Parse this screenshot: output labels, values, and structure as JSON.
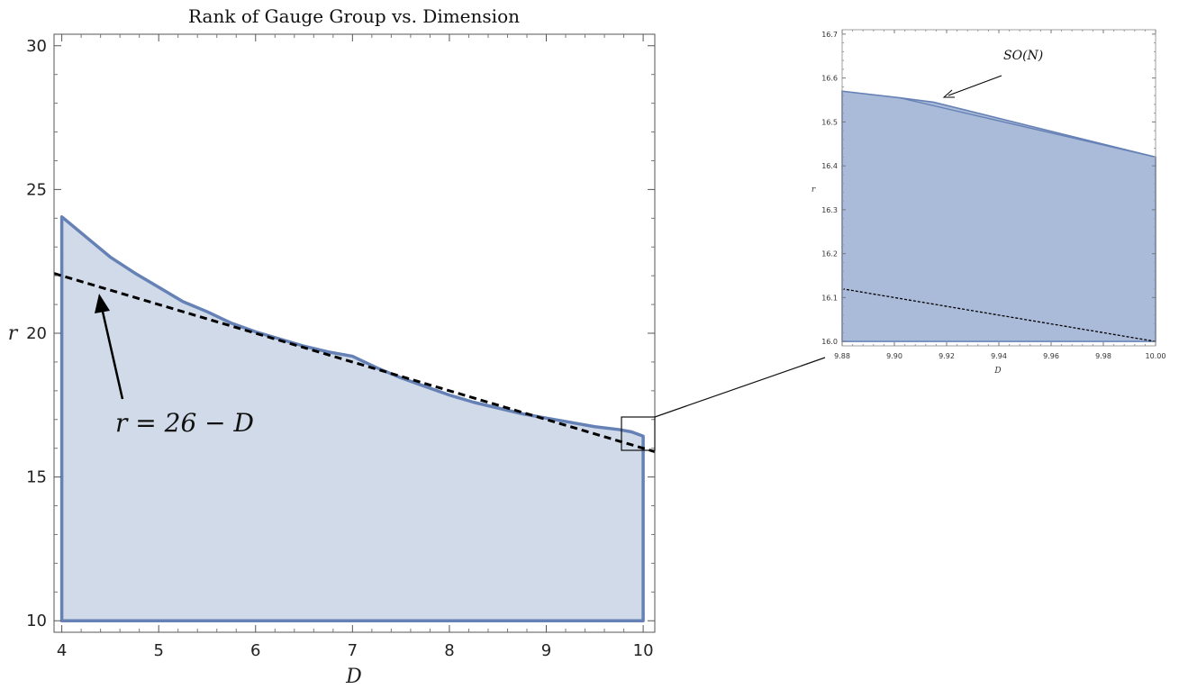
{
  "chart_data": [
    {
      "type": "area",
      "title": "Rank of Gauge Group vs. Dimension",
      "xlabel": "D",
      "ylabel": "r",
      "xlim": [
        3.92,
        10.12
      ],
      "ylim": [
        9.6,
        30.4
      ],
      "xticks": [
        "4",
        "5",
        "6",
        "7",
        "8",
        "9",
        "10"
      ],
      "yticks": [
        "10",
        "15",
        "20",
        "25",
        "30"
      ],
      "series": [
        {
          "kind": "filled-region",
          "fill_color": "#d0dae8",
          "edge_color": "#6581b5",
          "upper_boundary": {
            "x": [
              4,
              4.25,
              4.5,
              4.75,
              5,
              5.25,
              5.5,
              5.75,
              6,
              6.25,
              6.5,
              6.75,
              7,
              7.25,
              7.5,
              7.75,
              8,
              8.25,
              8.5,
              8.75,
              9,
              9.25,
              9.5,
              9.75,
              9.88,
              10
            ],
            "y": [
              24.05,
              23.35,
              22.65,
              22.1,
              21.6,
              21.1,
              20.75,
              20.35,
              20.05,
              19.8,
              19.55,
              19.35,
              19.2,
              18.8,
              18.45,
              18.15,
              17.85,
              17.6,
              17.4,
              17.2,
              17.05,
              16.9,
              16.75,
              16.65,
              16.57,
              16.42
            ]
          },
          "lower_boundary": 10
        },
        {
          "kind": "dashed-line",
          "color": "#000000",
          "x": [
            3.92,
            10.12
          ],
          "y": [
            22.08,
            15.88
          ]
        }
      ],
      "annotations": [
        {
          "text": "r = 26 − D",
          "arrow_target": {
            "x": 4.33,
            "y": 21.67
          }
        }
      ],
      "grid": false
    },
    {
      "type": "area",
      "title": "",
      "xlabel": "D",
      "ylabel": "r",
      "xlim": [
        9.88,
        10.0
      ],
      "ylim": [
        15.99,
        16.71
      ],
      "xticks": [
        "9.88",
        "9.90",
        "9.92",
        "9.94",
        "9.96",
        "9.98",
        "10.00"
      ],
      "yticks": [
        "16.0",
        "16.1",
        "16.2",
        "16.3",
        "16.4",
        "16.5",
        "16.6",
        "16.7"
      ],
      "series": [
        {
          "kind": "filled-region",
          "fill_color": "#aabbd9",
          "edge_color": "#6581b5",
          "upper_boundary": {
            "x": [
              9.88,
              9.902,
              9.915,
              10.0
            ],
            "y": [
              16.57,
              16.555,
              16.545,
              16.42
            ]
          },
          "inner_curve": {
            "x": [
              9.902,
              9.92,
              10.0
            ],
            "y": [
              16.555,
              16.53,
              16.42
            ]
          },
          "lower_boundary": 16.0
        },
        {
          "kind": "dotted-line",
          "color": "#000000",
          "x": [
            9.88,
            10.0
          ],
          "y": [
            16.12,
            16.0
          ]
        }
      ],
      "annotations": [
        {
          "text": "SO(N)",
          "arrow_target": {
            "x": 9.918,
            "y": 16.548
          }
        }
      ],
      "grid": false
    }
  ]
}
